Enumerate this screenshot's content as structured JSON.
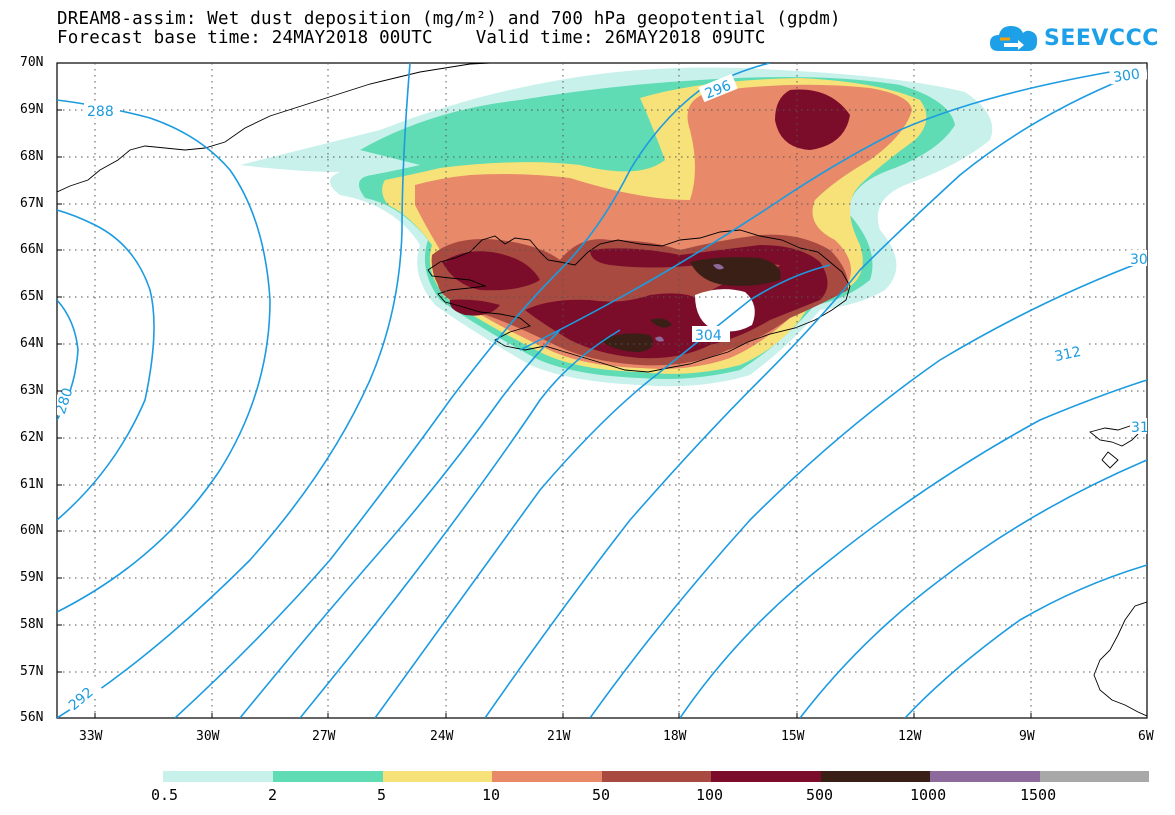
{
  "header": {
    "title_line1": "DREAM8-assim: Wet dust deposition (mg/m²) and 700 hPa geopotential (gpdm)",
    "title_line2": "Forecast base time: 24MAY2018 00UTC    Valid time: 26MAY2018 09UTC"
  },
  "logo": {
    "text": "SEEVCCC",
    "icon": "cloud-icon",
    "color": "#1ea0e8"
  },
  "map": {
    "lat_labels": [
      "70N",
      "69N",
      "68N",
      "67N",
      "66N",
      "65N",
      "64N",
      "63N",
      "62N",
      "61N",
      "60N",
      "59N",
      "58N",
      "57N",
      "56N"
    ],
    "lon_labels": [
      "33W",
      "30W",
      "27W",
      "24W",
      "21W",
      "18W",
      "15W",
      "12W",
      "9W",
      "6W"
    ],
    "contour_labels": [
      "288",
      "296",
      "300",
      "30",
      "304",
      "312",
      "280",
      "292",
      "31"
    ],
    "contour_color": "#1c9be0"
  },
  "legend": {
    "colors": [
      "#c8f1ec",
      "#5fdcb4",
      "#f7e27a",
      "#e8896a",
      "#a84a40",
      "#7b0d2a",
      "#3a1f16",
      "#8c6a9c",
      "#a8a8a8"
    ],
    "labels": [
      "0.5",
      "2",
      "5",
      "10",
      "50",
      "100",
      "500",
      "1000",
      "1500"
    ]
  }
}
